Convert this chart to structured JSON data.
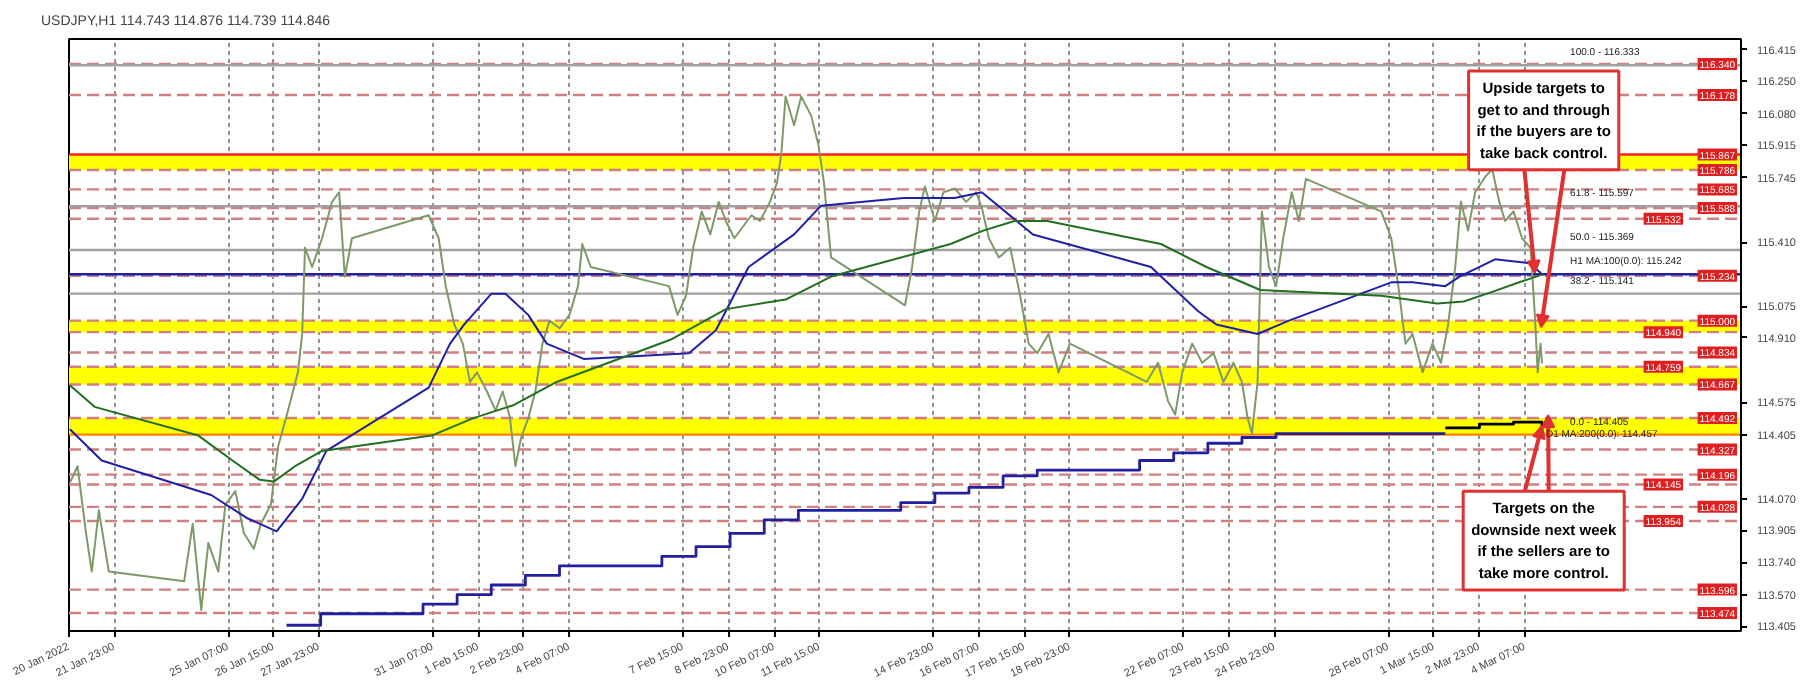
{
  "chart_data": {
    "type": "line",
    "title": "USDJPY,H1 114.743 114.876 114.739 114.846",
    "xlim": [
      "2022-01-20T15:00",
      "2022-03-10T15:00"
    ],
    "ylim": [
      113.38,
      116.47
    ],
    "xticks": [
      {
        "value": "2022-01-20T15:00",
        "label": "20 Jan 2022"
      },
      {
        "value": "2022-01-21T23:00",
        "label": "21 Jan 23:00"
      },
      {
        "value": "2022-01-25T07:00",
        "label": "25 Jan 07:00"
      },
      {
        "value": "2022-01-26T15:00",
        "label": "26 Jan 15:00"
      },
      {
        "value": "2022-01-27T23:00",
        "label": "27 Jan 23:00"
      },
      {
        "value": "2022-01-31T07:00",
        "label": "31 Jan 07:00"
      },
      {
        "value": "2022-02-01T15:00",
        "label": "1 Feb 15:00"
      },
      {
        "value": "2022-02-02T23:00",
        "label": "2 Feb 23:00"
      },
      {
        "value": "2022-02-04T07:00",
        "label": "4 Feb 07:00"
      },
      {
        "value": "2022-02-07T15:00",
        "label": "7 Feb 15:00"
      },
      {
        "value": "2022-02-08T23:00",
        "label": "8 Feb 23:00"
      },
      {
        "value": "2022-02-10T07:00",
        "label": "10 Feb 07:00"
      },
      {
        "value": "2022-02-11T15:00",
        "label": "11 Feb 15:00"
      },
      {
        "value": "2022-02-14T23:00",
        "label": "14 Feb 23:00"
      },
      {
        "value": "2022-02-16T07:00",
        "label": "16 Feb 07:00"
      },
      {
        "value": "2022-02-17T15:00",
        "label": "17 Feb 15:00"
      },
      {
        "value": "2022-02-18T23:00",
        "label": "18 Feb 23:00"
      },
      {
        "value": "2022-02-22T07:00",
        "label": "22 Feb 07:00"
      },
      {
        "value": "2022-02-23T15:00",
        "label": "23 Feb 15:00"
      },
      {
        "value": "2022-02-24T23:00",
        "label": "24 Feb 23:00"
      },
      {
        "value": "2022-02-28T07:00",
        "label": "28 Feb 07:00"
      },
      {
        "value": "2022-03-01T15:00",
        "label": "1 Mar 15:00"
      },
      {
        "value": "2022-03-02T23:00",
        "label": "2 Mar 23:00"
      },
      {
        "value": "2022-03-04T07:00",
        "label": "4 Mar 07:00"
      }
    ],
    "yticks": [
      116.415,
      {
        "value": 116.25,
        "label": "116.250"
      },
      {
        "value": 116.08,
        "label": "116.080"
      },
      115.915,
      115.745,
      {
        "value": 115.41,
        "label": "115.410"
      },
      115.075,
      {
        "value": 114.91,
        "label": "114.910"
      },
      114.575,
      114.405,
      {
        "value": 114.07,
        "label": "114.070"
      },
      113.905,
      {
        "value": 113.74,
        "label": "113.740"
      },
      {
        "value": 113.57,
        "label": "113.570"
      },
      113.405
    ],
    "grid": "x",
    "series": [
      {
        "color": "#7f9a6a",
        "x": [
          "2022-01-20T16:00",
          "2022-01-20T21:00",
          "2022-01-21T03:00",
          "2022-01-21T07:00",
          "2022-01-21T12:00",
          "2022-01-21T19:00",
          "2022-01-24T00:00",
          "2022-01-24T06:00",
          "2022-01-24T12:00",
          "2022-01-24T17:00",
          "2022-01-25T00:00",
          "2022-01-25T05:00",
          "2022-01-25T12:00",
          "2022-01-25T18:00",
          "2022-01-26T01:00",
          "2022-01-26T06:00",
          "2022-01-26T13:00",
          "2022-01-26T18:00",
          "2022-01-27T01:00",
          "2022-01-27T08:00",
          "2022-01-27T11:00",
          "2022-01-27T13:00",
          "2022-01-27T18:00",
          "2022-01-28T01:00",
          "2022-01-28T08:00",
          "2022-01-28T13:00",
          "2022-01-28T17:00",
          "2022-01-28T22:00",
          "2022-01-31T04:00",
          "2022-01-31T11:00",
          "2022-01-31T16:00",
          "2022-01-31T22:00",
          "2022-02-01T04:00",
          "2022-02-01T09:00",
          "2022-02-01T14:00",
          "2022-02-01T21:00",
          "2022-02-02T03:00",
          "2022-02-02T08:00",
          "2022-02-02T13:00",
          "2022-02-02T17:00",
          "2022-02-02T21:00",
          "2022-02-03T02:00",
          "2022-02-03T07:00",
          "2022-02-03T12:00",
          "2022-02-03T17:00",
          "2022-02-04T00:00",
          "2022-02-04T07:00",
          "2022-02-04T13:00",
          "2022-02-04T16:00",
          "2022-02-04T22:00",
          "2022-02-07T05:00",
          "2022-02-07T11:00",
          "2022-02-07T17:00",
          "2022-02-07T22:00",
          "2022-02-08T04:00",
          "2022-02-08T10:00",
          "2022-02-08T16:00",
          "2022-02-08T21:00",
          "2022-02-09T03:00",
          "2022-02-09T09:00",
          "2022-02-09T15:00",
          "2022-02-09T21:00",
          "2022-02-10T04:00",
          "2022-02-10T09:00",
          "2022-02-10T12:00",
          "2022-02-10T15:00",
          "2022-02-10T21:00",
          "2022-02-11T02:00",
          "2022-02-11T09:00",
          "2022-02-11T14:00",
          "2022-02-11T18:00",
          "2022-02-11T23:00",
          "2022-02-14T03:00",
          "2022-02-14T08:00",
          "2022-02-14T13:00",
          "2022-02-14T17:00",
          "2022-02-15T00:00",
          "2022-02-15T06:00",
          "2022-02-15T14:00",
          "2022-02-15T22:00",
          "2022-02-16T05:00",
          "2022-02-16T09:00",
          "2022-02-16T14:00",
          "2022-02-16T21:00",
          "2022-02-17T05:00",
          "2022-02-17T12:00",
          "2022-02-17T18:00",
          "2022-02-18T00:00",
          "2022-02-18T08:00",
          "2022-02-18T15:00",
          "2022-02-18T23:00",
          "2022-02-21T05:00",
          "2022-02-21T13:00",
          "2022-02-21T20:00",
          "2022-02-22T01:00",
          "2022-02-22T06:00",
          "2022-02-22T13:00",
          "2022-02-22T20:00",
          "2022-02-23T04:00",
          "2022-02-23T11:00",
          "2022-02-23T18:00",
          "2022-02-24T00:00",
          "2022-02-24T04:00",
          "2022-02-24T07:00",
          "2022-02-24T11:00",
          "2022-02-24T14:00",
          "2022-02-24T19:00",
          "2022-02-25T00:00",
          "2022-02-25T05:00",
          "2022-02-25T11:00",
          "2022-02-25T16:00",
          "2022-02-25T21:00",
          "2022-02-28T02:00",
          "2022-02-28T09:00",
          "2022-02-28T14:00",
          "2022-02-28T19:00",
          "2022-03-01T00:00",
          "2022-03-01T07:00",
          "2022-03-01T14:00",
          "2022-03-01T20:00",
          "2022-03-02T01:00",
          "2022-03-02T06:00",
          "2022-03-02T10:00",
          "2022-03-02T15:00",
          "2022-03-02T20:00",
          "2022-03-03T03:00",
          "2022-03-03T08:00",
          "2022-03-03T13:00",
          "2022-03-03T17:00",
          "2022-03-03T23:00",
          "2022-03-04T05:00",
          "2022-03-04T11:00",
          "2022-03-04T14:00",
          "2022-03-04T16:00",
          "2022-03-04T18:00",
          "2022-03-04T19:00"
        ],
        "values": [
          114.16,
          114.24,
          113.89,
          113.69,
          114.01,
          113.69,
          113.64,
          113.94,
          113.49,
          113.84,
          113.69,
          114.04,
          114.11,
          113.89,
          113.81,
          113.94,
          114.04,
          114.34,
          114.53,
          114.73,
          114.93,
          115.38,
          115.28,
          115.43,
          115.62,
          115.67,
          115.23,
          115.43,
          115.55,
          115.43,
          115.18,
          114.98,
          114.88,
          114.68,
          114.73,
          114.63,
          114.53,
          114.63,
          114.5,
          114.24,
          114.39,
          114.49,
          114.63,
          114.88,
          115.0,
          114.96,
          115.03,
          115.18,
          115.4,
          115.28,
          115.18,
          115.03,
          115.13,
          115.38,
          115.57,
          115.45,
          115.62,
          115.52,
          115.43,
          115.49,
          115.55,
          115.52,
          115.62,
          115.72,
          115.87,
          116.17,
          116.02,
          116.17,
          116.07,
          115.92,
          115.72,
          115.33,
          115.08,
          115.28,
          115.57,
          115.7,
          115.52,
          115.67,
          115.69,
          115.62,
          115.67,
          115.59,
          115.43,
          115.33,
          115.38,
          115.13,
          114.88,
          114.83,
          114.93,
          114.73,
          114.88,
          114.68,
          114.78,
          114.58,
          114.51,
          114.73,
          114.88,
          114.78,
          114.83,
          114.68,
          114.78,
          114.68,
          114.49,
          114.41,
          114.68,
          115.57,
          115.28,
          115.18,
          115.43,
          115.67,
          115.52,
          115.74,
          115.57,
          115.43,
          115.18,
          114.88,
          114.93,
          114.73,
          114.88,
          114.78,
          114.98,
          115.28,
          115.62,
          115.47,
          115.67,
          115.75,
          115.79,
          115.62,
          115.52,
          115.57,
          115.43,
          115.38,
          115.03,
          114.73,
          114.88,
          114.78
        ]
      },
      {
        "color": "#1f1fa8",
        "x": [
          "2022-01-20T16:00",
          "2022-01-21T14:00",
          "2022-01-24T19:00",
          "2022-01-25T20:00",
          "2022-01-26T17:00",
          "2022-01-27T11:00",
          "2022-01-28T04:00",
          "2022-01-31T04:00",
          "2022-01-31T19:00",
          "2022-02-01T05:00",
          "2022-02-02T00:00",
          "2022-02-02T10:00",
          "2022-02-03T02:00",
          "2022-02-03T15:00",
          "2022-02-04T17:00",
          "2022-02-07T19:00",
          "2022-02-08T14:00",
          "2022-02-09T13:00",
          "2022-02-10T21:00",
          "2022-02-11T16:00",
          "2022-02-14T02:00",
          "2022-02-15T14:00",
          "2022-02-16T09:00",
          "2022-02-17T21:00",
          "2022-02-21T08:00",
          "2022-02-22T17:00",
          "2022-02-23T06:00",
          "2022-02-24T11:00",
          "2022-02-25T09:00",
          "2022-02-28T09:00",
          "2022-03-01T00:00",
          "2022-03-01T23:00",
          "2022-03-02T09:00",
          "2022-03-03T10:00",
          "2022-03-04T10:00",
          "2022-03-04T18:00"
        ],
        "values": [
          114.43,
          114.27,
          114.09,
          113.97,
          113.9,
          114.07,
          114.32,
          114.65,
          114.88,
          114.98,
          115.14,
          115.14,
          115.03,
          114.88,
          114.8,
          114.83,
          114.95,
          115.28,
          115.45,
          115.6,
          115.64,
          115.64,
          115.67,
          115.45,
          115.28,
          115.05,
          114.98,
          114.93,
          115.0,
          115.2,
          115.2,
          115.18,
          115.23,
          115.32,
          115.3,
          115.25
        ]
      },
      {
        "color": "#207020",
        "x": [
          "2022-01-20T16:00",
          "2022-01-21T09:00",
          "2022-01-24T10:00",
          "2022-01-25T10:00",
          "2022-01-26T05:00",
          "2022-01-26T15:00",
          "2022-01-27T06:00",
          "2022-01-28T01:00",
          "2022-01-31T06:00",
          "2022-02-01T11:00",
          "2022-02-02T16:00",
          "2022-02-03T22:00",
          "2022-02-07T06:00",
          "2022-02-08T21:00",
          "2022-02-10T15:00",
          "2022-02-11T23:00",
          "2022-02-15T11:00",
          "2022-02-16T10:00",
          "2022-02-17T08:00",
          "2022-02-18T07:00",
          "2022-02-21T15:00",
          "2022-02-22T23:00",
          "2022-02-24T13:00",
          "2022-02-28T02:00",
          "2022-03-01T17:00",
          "2022-03-02T12:00",
          "2022-03-03T08:00",
          "2022-03-04T03:00",
          "2022-03-04T19:00"
        ],
        "values": [
          114.66,
          114.55,
          114.4,
          114.27,
          114.17,
          114.16,
          114.24,
          114.32,
          114.4,
          114.49,
          114.56,
          114.68,
          114.9,
          115.06,
          115.11,
          115.23,
          115.4,
          115.47,
          115.52,
          115.52,
          115.4,
          115.28,
          115.16,
          115.13,
          115.09,
          115.1,
          115.15,
          115.2,
          115.24
        ]
      },
      {
        "color": "#2020a0",
        "type": "step",
        "x": [
          "2022-01-27",
          "2022-01-28",
          "2022-01-31",
          "2022-02-01",
          "2022-02-02",
          "2022-02-03",
          "2022-02-04",
          "2022-02-07",
          "2022-02-08",
          "2022-02-09",
          "2022-02-10",
          "2022-02-11",
          "2022-02-14",
          "2022-02-15",
          "2022-02-16",
          "2022-02-17",
          "2022-02-18",
          "2022-02-21",
          "2022-02-22",
          "2022-02-23",
          "2022-02-24",
          "2022-02-25",
          "2022-02-28",
          "2022-03-01",
          "2022-03-01T23:00"
        ],
        "values": [
          113.41,
          113.47,
          113.52,
          113.57,
          113.62,
          113.67,
          113.72,
          113.77,
          113.82,
          113.89,
          113.96,
          114.01,
          114.05,
          114.1,
          114.13,
          114.19,
          114.22,
          114.27,
          114.31,
          114.36,
          114.39,
          114.41,
          114.41,
          114.41,
          114.41
        ]
      },
      {
        "color": "#000000",
        "type": "step",
        "x": [
          "2022-03-01T23:00",
          "2022-03-02T23:00",
          "2022-03-03T23:00",
          "2022-03-04T19:00"
        ],
        "values": [
          114.44,
          114.46,
          114.47,
          114.45
        ]
      }
    ],
    "bands": [
      {
        "axis": "y",
        "from": 115.786,
        "to": 115.867,
        "color": "#ffff00"
      },
      {
        "axis": "y",
        "from": 114.94,
        "to": 115.0,
        "color": "#ffff00"
      },
      {
        "axis": "y",
        "from": 114.667,
        "to": 114.759,
        "color": "#ffff00"
      },
      {
        "axis": "y",
        "from": 114.405,
        "to": 114.492,
        "color": "#ffff00"
      }
    ],
    "ref_lines": [
      {
        "axis": "y",
        "value": 116.34,
        "label": "116.340",
        "color": "#d08080",
        "line_style": "dashed"
      },
      {
        "axis": "y",
        "value": 116.178,
        "label": "116.178",
        "color": "#d08080",
        "line_style": "dashed"
      },
      {
        "axis": "y",
        "value": 115.867,
        "label": "115.867",
        "color": "#ff2020",
        "line_style": "solid"
      },
      {
        "axis": "y",
        "value": 115.786,
        "label": "115.786",
        "color": "#d08080",
        "line_style": "dashed"
      },
      {
        "axis": "y",
        "value": 115.685,
        "label": "115.685",
        "color": "#d08080",
        "line_style": "dashed"
      },
      {
        "axis": "y",
        "value": 115.588,
        "label": "115.588",
        "color": "#d08080",
        "line_style": "dashed"
      },
      {
        "axis": "y",
        "value": 115.532,
        "label": "115.532",
        "color": "#d08080",
        "line_style": "dashed"
      },
      {
        "axis": "y",
        "value": 115.234,
        "label": "115.234",
        "color": "#d08080",
        "line_style": "dashed"
      },
      {
        "axis": "y",
        "value": 115.0,
        "label": "115.000",
        "color": "#d08080",
        "line_style": "dashed"
      },
      {
        "axis": "y",
        "value": 114.94,
        "label": "114.940",
        "color": "#d08080",
        "line_style": "dashed"
      },
      {
        "axis": "y",
        "value": 114.834,
        "label": "114.834",
        "color": "#d08080",
        "line_style": "dashed"
      },
      {
        "axis": "y",
        "value": 114.759,
        "label": "114.759",
        "color": "#d08080",
        "line_style": "dashed"
      },
      {
        "axis": "y",
        "value": 114.667,
        "label": "114.667",
        "color": "#d08080",
        "line_style": "dashed"
      },
      {
        "axis": "y",
        "value": 114.492,
        "label": "114.492",
        "color": "#d08080",
        "line_style": "dashed"
      },
      {
        "axis": "y",
        "value": 114.327,
        "label": "114.327",
        "color": "#d08080",
        "line_style": "dashed"
      },
      {
        "axis": "y",
        "value": 114.196,
        "label": "114.196",
        "color": "#d08080",
        "line_style": "dashed"
      },
      {
        "axis": "y",
        "value": 114.145,
        "label": "114.145",
        "color": "#d08080",
        "line_style": "dashed"
      },
      {
        "axis": "y",
        "value": 114.028,
        "label": "114.028",
        "color": "#d08080",
        "line_style": "dashed"
      },
      {
        "axis": "y",
        "value": 113.954,
        "label": "113.954",
        "color": "#d08080",
        "line_style": "dashed"
      },
      {
        "axis": "y",
        "value": 113.596,
        "label": "113.596",
        "color": "#d08080",
        "line_style": "dashed"
      },
      {
        "axis": "y",
        "value": 113.474,
        "label": "113.474",
        "color": "#d08080",
        "line_style": "dashed"
      },
      {
        "axis": "y",
        "value": 116.333,
        "color": "#a0a0a0",
        "line_style": "solid"
      },
      {
        "axis": "y",
        "value": 115.597,
        "color": "#a0a0a0",
        "line_style": "solid"
      },
      {
        "axis": "y",
        "value": 115.369,
        "color": "#a0a0a0",
        "line_style": "solid"
      },
      {
        "axis": "y",
        "value": 115.242,
        "color": "#1f1fa8",
        "line_style": "solid"
      },
      {
        "axis": "y",
        "value": 115.141,
        "color": "#a0a0a0",
        "line_style": "solid"
      },
      {
        "axis": "y",
        "value": 114.405,
        "color": "#ff8000",
        "line_style": "solid"
      }
    ],
    "annotations": [
      {
        "text": "Upside targets to\nget to and through\nif the buyers are to\ntake back control.",
        "x": "2022-03-04T14:00",
        "y": 115.25
      },
      {
        "text": "Targets on the\ndownside next week\nif the sellers are to\ntake more control.",
        "x": "2022-03-04T19:00",
        "y": 114.45
      },
      {
        "text": "100.0 - 116.333",
        "x": "2022-03-05T12:00",
        "y": 116.333
      },
      {
        "text": "61.8 - 115.597",
        "x": "2022-03-05T12:00",
        "y": 115.597
      },
      {
        "text": "50.0 - 115.369",
        "x": "2022-03-05T12:00",
        "y": 115.369
      },
      {
        "text": "H1 MA:100(0.0): 115.242",
        "x": "2022-03-05T12:00",
        "y": 115.242
      },
      {
        "text": "38.2 - 115.141",
        "x": "2022-03-05T12:00",
        "y": 115.141
      },
      {
        "text": "0.0 - 114.405",
        "x": "2022-03-05T12:00",
        "y": 114.405
      },
      {
        "text": "D1 MA:200(0.0): 114.457",
        "x": "2022-03-04T19:00",
        "y": 114.457
      }
    ]
  }
}
